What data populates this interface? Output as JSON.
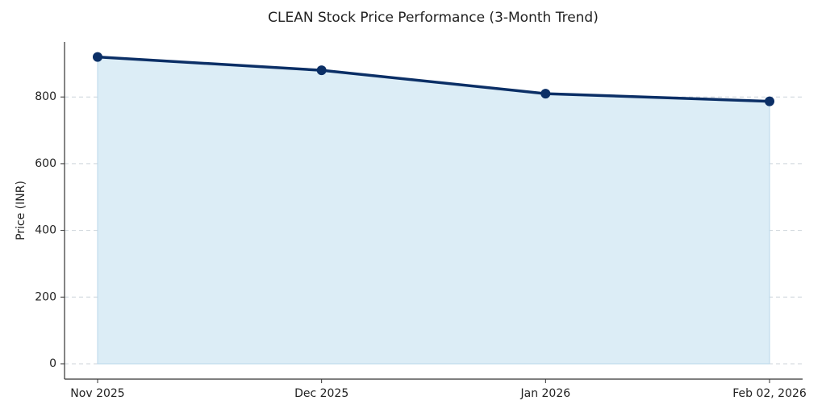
{
  "chart_data": {
    "type": "area_line",
    "title": "CLEAN Stock Price Performance (3-Month Trend)",
    "y_label": "Price (INR)",
    "categories": [
      "Nov 2025",
      "Dec 2025",
      "Jan 2026",
      "Feb 02, 2026"
    ],
    "values": [
      920,
      880,
      810,
      787
    ],
    "color": "#0b2f66",
    "fill_color": "#dcedf6",
    "ylim": [
      -46,
      965
    ],
    "yticks": [
      0,
      200,
      400,
      600,
      800
    ],
    "grid": true
  }
}
